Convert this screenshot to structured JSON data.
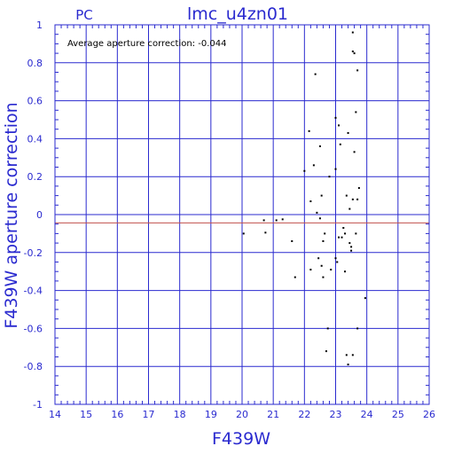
{
  "chart_data": {
    "type": "scatter",
    "title": "lmc_u4zn01",
    "corner_label": "PC",
    "annotation": "Average aperture correction:  -0.044",
    "xlabel": "F439W",
    "ylabel": "F439W aperture correction",
    "xlim": [
      14,
      26
    ],
    "ylim": [
      -1,
      1
    ],
    "x_ticks": [
      "14",
      "15",
      "16",
      "17",
      "18",
      "19",
      "20",
      "21",
      "22",
      "23",
      "24",
      "25",
      "26"
    ],
    "y_ticks": [
      "-1",
      "-0.8",
      "-0.6",
      "-0.4",
      "-0.2",
      "0",
      "0.2",
      "0.4",
      "0.6",
      "0.8",
      "1"
    ],
    "grid": true,
    "reference_line_y": -0.044,
    "colors": {
      "axes": "#2a2acf",
      "grid": "#2a2acf",
      "reference_line": "#c0504d",
      "points": "#000000"
    },
    "points": [
      [
        20.05,
        -0.1
      ],
      [
        20.7,
        -0.03
      ],
      [
        20.75,
        -0.095
      ],
      [
        21.1,
        -0.03
      ],
      [
        21.3,
        -0.025
      ],
      [
        21.6,
        -0.14
      ],
      [
        21.7,
        -0.33
      ],
      [
        22.0,
        0.23
      ],
      [
        22.15,
        0.44
      ],
      [
        22.2,
        0.07
      ],
      [
        22.2,
        -0.29
      ],
      [
        22.3,
        0.26
      ],
      [
        22.35,
        0.74
      ],
      [
        22.4,
        0.01
      ],
      [
        22.45,
        -0.23
      ],
      [
        22.5,
        0.36
      ],
      [
        22.5,
        -0.02
      ],
      [
        22.55,
        0.1
      ],
      [
        22.55,
        -0.27
      ],
      [
        22.6,
        -0.14
      ],
      [
        22.6,
        -0.33
      ],
      [
        22.65,
        -0.1
      ],
      [
        22.7,
        -0.72
      ],
      [
        22.75,
        -0.6
      ],
      [
        22.8,
        0.2
      ],
      [
        22.85,
        -0.29
      ],
      [
        23.0,
        0.51
      ],
      [
        23.0,
        0.24
      ],
      [
        23.0,
        -0.23
      ],
      [
        23.05,
        -0.25
      ],
      [
        23.1,
        0.47
      ],
      [
        23.1,
        -0.12
      ],
      [
        23.15,
        0.37
      ],
      [
        23.2,
        -0.12
      ],
      [
        23.25,
        -0.07
      ],
      [
        23.3,
        -0.1
      ],
      [
        23.3,
        -0.3
      ],
      [
        23.35,
        0.1
      ],
      [
        23.35,
        -0.74
      ],
      [
        23.4,
        0.43
      ],
      [
        23.4,
        -0.79
      ],
      [
        23.45,
        0.03
      ],
      [
        23.45,
        -0.15
      ],
      [
        23.5,
        -0.17
      ],
      [
        23.5,
        -0.19
      ],
      [
        23.55,
        0.96
      ],
      [
        23.55,
        0.86
      ],
      [
        23.55,
        0.08
      ],
      [
        23.55,
        -0.74
      ],
      [
        23.6,
        0.85
      ],
      [
        23.6,
        0.33
      ],
      [
        23.65,
        0.54
      ],
      [
        23.65,
        -0.1
      ],
      [
        23.7,
        0.76
      ],
      [
        23.7,
        0.08
      ],
      [
        23.7,
        -0.6
      ],
      [
        23.75,
        0.14
      ],
      [
        23.95,
        -0.44
      ]
    ]
  }
}
